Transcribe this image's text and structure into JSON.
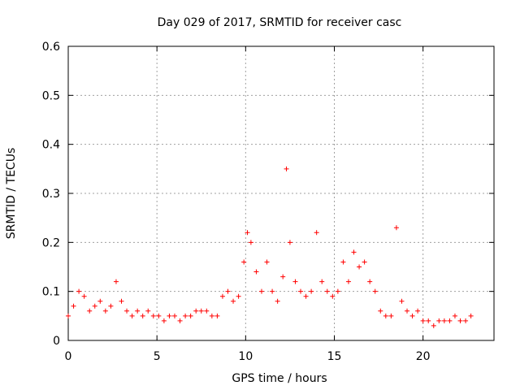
{
  "chart_data": {
    "type": "scatter",
    "title": "Day 029 of 2017, SRMTID for receiver casc",
    "xlabel": "GPS time / hours",
    "ylabel": "SRMTID / TECUs",
    "xlim": [
      0,
      24
    ],
    "ylim": [
      0,
      0.6
    ],
    "xticks": [
      0,
      5,
      10,
      15,
      20
    ],
    "xtick_labels": [
      "0",
      "5",
      "10",
      "15",
      "20"
    ],
    "yticks": [
      0,
      0.1,
      0.2,
      0.3,
      0.4,
      0.5,
      0.6
    ],
    "ytick_labels": [
      "0",
      "0.1",
      "0.2",
      "0.3",
      "0.4",
      "0.5",
      "0.6"
    ],
    "grid": true,
    "marker": "+",
    "color": "#ff0000",
    "series": [
      {
        "name": "SRMTID",
        "x": [
          0.0,
          0.3,
          0.6,
          0.9,
          1.2,
          1.5,
          1.8,
          2.1,
          2.4,
          2.7,
          3.0,
          3.3,
          3.6,
          3.9,
          4.2,
          4.5,
          4.8,
          5.1,
          5.4,
          5.7,
          6.0,
          6.3,
          6.6,
          6.9,
          7.2,
          7.5,
          7.8,
          8.1,
          8.4,
          8.7,
          9.0,
          9.3,
          9.6,
          9.9,
          10.1,
          10.3,
          10.6,
          10.9,
          11.2,
          11.5,
          11.8,
          12.1,
          12.3,
          12.5,
          12.8,
          13.1,
          13.4,
          13.7,
          14.0,
          14.3,
          14.6,
          14.9,
          15.2,
          15.5,
          15.8,
          16.1,
          16.4,
          16.7,
          17.0,
          17.3,
          17.6,
          17.9,
          18.2,
          18.5,
          18.8,
          19.1,
          19.4,
          19.7,
          20.0,
          20.3,
          20.6,
          20.9,
          21.2,
          21.5,
          21.8,
          22.1,
          22.4,
          22.7
        ],
        "y": [
          0.05,
          0.07,
          0.1,
          0.09,
          0.06,
          0.07,
          0.08,
          0.06,
          0.07,
          0.12,
          0.08,
          0.06,
          0.05,
          0.06,
          0.05,
          0.06,
          0.05,
          0.05,
          0.04,
          0.05,
          0.05,
          0.04,
          0.05,
          0.05,
          0.06,
          0.06,
          0.06,
          0.05,
          0.05,
          0.09,
          0.1,
          0.08,
          0.09,
          0.16,
          0.22,
          0.2,
          0.14,
          0.1,
          0.16,
          0.1,
          0.08,
          0.13,
          0.35,
          0.2,
          0.12,
          0.1,
          0.09,
          0.1,
          0.22,
          0.12,
          0.1,
          0.09,
          0.1,
          0.16,
          0.12,
          0.18,
          0.15,
          0.16,
          0.12,
          0.1,
          0.06,
          0.05,
          0.05,
          0.23,
          0.08,
          0.06,
          0.05,
          0.06,
          0.04,
          0.04,
          0.03,
          0.04,
          0.04,
          0.04,
          0.05,
          0.04,
          0.04,
          0.05
        ]
      }
    ]
  }
}
